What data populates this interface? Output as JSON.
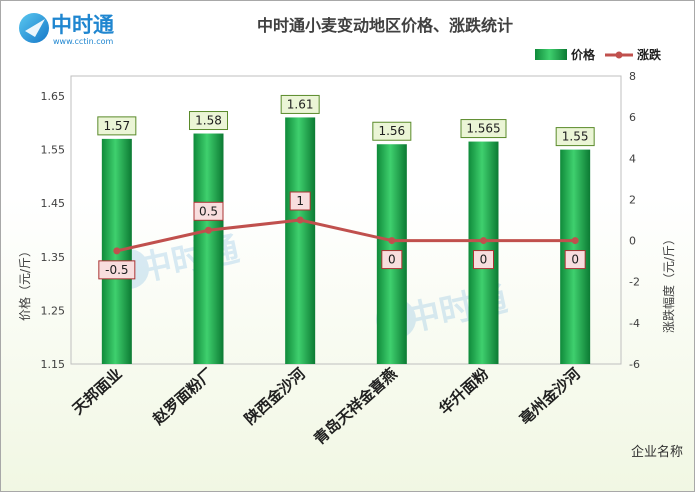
{
  "brand": {
    "logo_text": "中时通",
    "logo_url": "www.cctin.com"
  },
  "chart_data": {
    "type": "bar",
    "title": "中时通小麦变动地区价格、涨跌统计",
    "categories": [
      "天邦面业",
      "赵罗面粉厂",
      "陕西金沙河",
      "青岛天祥金喜燕",
      "华升面粉",
      "亳州金沙河"
    ],
    "series": [
      {
        "name": "价格",
        "type": "bar",
        "axis": "left",
        "values": [
          1.57,
          1.58,
          1.61,
          1.56,
          1.565,
          1.55
        ],
        "labels": [
          "1.57",
          "1.58",
          "1.61",
          "1.56",
          "1.565",
          "1.55"
        ]
      },
      {
        "name": "涨跌",
        "type": "line",
        "axis": "right",
        "values": [
          -0.5,
          0.5,
          1,
          0,
          0,
          0
        ],
        "labels": [
          "-0.5",
          "0.5",
          "1",
          "0",
          "0",
          "0"
        ]
      }
    ],
    "xlabel": "企业名称",
    "ylabel_left": "价格（元/斤）",
    "ylabel_right": "涨跌幅度（元/斤）",
    "ylim_left": [
      1.15,
      1.65
    ],
    "yticks_left": [
      "1.65",
      "1.55",
      "1.45",
      "1.35",
      "1.25",
      "1.15"
    ],
    "ylim_right": [
      -6,
      8
    ],
    "yticks_right": [
      "8",
      "6",
      "4",
      "2",
      "0",
      "-2",
      "-4",
      "-6"
    ],
    "legend_position": "top-right",
    "colors": {
      "bar": "#1aa64a",
      "line": "#c0504d",
      "bar_label_bg": "#ebf5d6",
      "line_label_bg": "#f8dede"
    }
  }
}
